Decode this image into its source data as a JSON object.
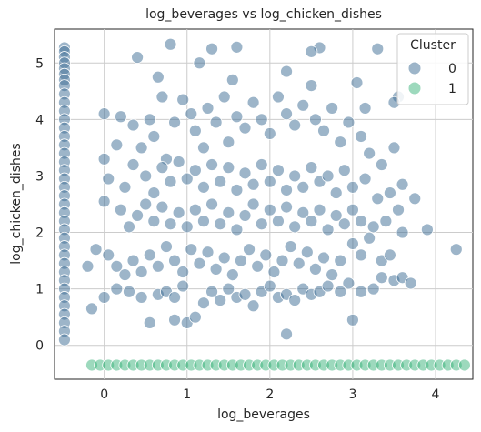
{
  "chart_data": {
    "type": "scatter",
    "title": "log_beverages vs log_chicken_dishes",
    "xlabel": "log_beverages",
    "ylabel": "log_chicken_dishes",
    "xlim": [
      -0.6,
      4.45
    ],
    "ylim": [
      -0.6,
      5.6
    ],
    "xticks": [
      0,
      1,
      2,
      3,
      4
    ],
    "yticks": [
      0,
      1,
      2,
      3,
      4,
      5
    ],
    "grid": true,
    "legend": {
      "title": "Cluster",
      "placement": "top-right"
    },
    "series": [
      {
        "name": "0",
        "color": "#3b6b93",
        "points": [
          [
            -0.48,
            5.27
          ],
          [
            -0.48,
            5.2
          ],
          [
            -0.48,
            5.1
          ],
          [
            -0.48,
            5.0
          ],
          [
            -0.48,
            4.9
          ],
          [
            -0.48,
            4.8
          ],
          [
            -0.48,
            4.7
          ],
          [
            -0.48,
            4.6
          ],
          [
            -0.48,
            4.45
          ],
          [
            -0.48,
            4.3
          ],
          [
            -0.48,
            4.15
          ],
          [
            -0.48,
            4.0
          ],
          [
            -0.48,
            3.85
          ],
          [
            -0.48,
            3.7
          ],
          [
            -0.48,
            3.55
          ],
          [
            -0.48,
            3.4
          ],
          [
            -0.48,
            3.25
          ],
          [
            -0.48,
            3.1
          ],
          [
            -0.48,
            2.95
          ],
          [
            -0.48,
            2.8
          ],
          [
            -0.48,
            2.65
          ],
          [
            -0.48,
            2.5
          ],
          [
            -0.48,
            2.35
          ],
          [
            -0.48,
            2.2
          ],
          [
            -0.48,
            2.05
          ],
          [
            -0.48,
            1.9
          ],
          [
            -0.48,
            1.75
          ],
          [
            -0.48,
            1.6
          ],
          [
            -0.48,
            1.45
          ],
          [
            -0.48,
            1.3
          ],
          [
            -0.48,
            1.15
          ],
          [
            -0.48,
            1.0
          ],
          [
            -0.48,
            0.85
          ],
          [
            -0.48,
            0.7
          ],
          [
            -0.48,
            0.55
          ],
          [
            -0.48,
            0.4
          ],
          [
            -0.48,
            0.25
          ],
          [
            -0.48,
            0.1
          ],
          [
            0.8,
            5.33
          ],
          [
            1.3,
            5.25
          ],
          [
            1.6,
            5.28
          ],
          [
            2.6,
            5.27
          ],
          [
            2.5,
            5.2
          ],
          [
            3.3,
            5.25
          ],
          [
            0.4,
            5.1
          ],
          [
            1.15,
            5.0
          ],
          [
            2.2,
            4.85
          ],
          [
            1.55,
            4.7
          ],
          [
            3.05,
            4.65
          ],
          [
            2.5,
            4.6
          ],
          [
            0.65,
            4.75
          ],
          [
            3.55,
            4.4
          ],
          [
            3.15,
            4.2
          ],
          [
            3.5,
            4.3
          ],
          [
            0.0,
            4.1
          ],
          [
            0.2,
            4.05
          ],
          [
            0.35,
            3.9
          ],
          [
            0.15,
            3.55
          ],
          [
            0.0,
            3.3
          ],
          [
            0.05,
            2.95
          ],
          [
            0.25,
            2.8
          ],
          [
            0.35,
            3.2
          ],
          [
            0.45,
            3.5
          ],
          [
            0.55,
            4.0
          ],
          [
            0.6,
            3.7
          ],
          [
            0.7,
            4.4
          ],
          [
            0.75,
            3.3
          ],
          [
            0.85,
            3.95
          ],
          [
            0.95,
            4.35
          ],
          [
            1.05,
            4.1
          ],
          [
            1.1,
            3.8
          ],
          [
            1.2,
            3.5
          ],
          [
            1.25,
            4.2
          ],
          [
            1.35,
            3.95
          ],
          [
            1.45,
            4.4
          ],
          [
            1.5,
            3.6
          ],
          [
            1.6,
            4.05
          ],
          [
            1.7,
            3.85
          ],
          [
            1.8,
            4.3
          ],
          [
            1.9,
            4.0
          ],
          [
            2.0,
            3.75
          ],
          [
            2.1,
            4.4
          ],
          [
            2.2,
            4.1
          ],
          [
            2.3,
            3.9
          ],
          [
            2.4,
            4.25
          ],
          [
            2.55,
            4.0
          ],
          [
            2.65,
            3.8
          ],
          [
            2.75,
            4.2
          ],
          [
            2.85,
            3.6
          ],
          [
            2.95,
            3.95
          ],
          [
            3.1,
            3.7
          ],
          [
            3.2,
            3.4
          ],
          [
            3.35,
            3.2
          ],
          [
            3.5,
            3.5
          ],
          [
            0.5,
            3.0
          ],
          [
            0.6,
            2.7
          ],
          [
            0.7,
            3.15
          ],
          [
            0.8,
            2.9
          ],
          [
            0.9,
            3.25
          ],
          [
            1.0,
            2.95
          ],
          [
            1.1,
            3.1
          ],
          [
            1.2,
            2.8
          ],
          [
            1.3,
            3.2
          ],
          [
            1.4,
            2.9
          ],
          [
            1.5,
            3.15
          ],
          [
            1.6,
            2.75
          ],
          [
            1.7,
            3.05
          ],
          [
            1.8,
            2.85
          ],
          [
            1.9,
            3.2
          ],
          [
            2.0,
            2.9
          ],
          [
            2.1,
            3.1
          ],
          [
            2.2,
            2.75
          ],
          [
            2.3,
            3.0
          ],
          [
            2.4,
            2.8
          ],
          [
            2.5,
            3.15
          ],
          [
            2.6,
            2.9
          ],
          [
            2.7,
            3.0
          ],
          [
            2.8,
            2.7
          ],
          [
            2.9,
            3.1
          ],
          [
            3.0,
            2.8
          ],
          [
            3.15,
            2.95
          ],
          [
            3.3,
            2.6
          ],
          [
            3.45,
            2.7
          ],
          [
            3.6,
            2.85
          ],
          [
            3.75,
            2.6
          ],
          [
            3.55,
            2.4
          ],
          [
            0.0,
            2.55
          ],
          [
            0.2,
            2.4
          ],
          [
            0.3,
            2.1
          ],
          [
            0.4,
            2.3
          ],
          [
            0.5,
            2.5
          ],
          [
            0.6,
            2.2
          ],
          [
            0.7,
            2.45
          ],
          [
            0.8,
            2.15
          ],
          [
            0.9,
            2.35
          ],
          [
            1.0,
            2.1
          ],
          [
            1.1,
            2.4
          ],
          [
            1.2,
            2.2
          ],
          [
            1.3,
            2.5
          ],
          [
            1.4,
            2.15
          ],
          [
            1.5,
            2.35
          ],
          [
            1.6,
            2.05
          ],
          [
            1.7,
            2.3
          ],
          [
            1.8,
            2.5
          ],
          [
            1.9,
            2.15
          ],
          [
            2.0,
            2.4
          ],
          [
            2.1,
            2.2
          ],
          [
            2.2,
            2.45
          ],
          [
            2.3,
            2.1
          ],
          [
            2.4,
            2.35
          ],
          [
            2.5,
            2.2
          ],
          [
            2.6,
            2.4
          ],
          [
            2.7,
            2.05
          ],
          [
            2.8,
            2.3
          ],
          [
            2.9,
            2.15
          ],
          [
            3.0,
            2.4
          ],
          [
            3.1,
            2.2
          ],
          [
            3.25,
            2.1
          ],
          [
            3.4,
            2.2
          ],
          [
            3.6,
            2.0
          ],
          [
            3.9,
            2.05
          ],
          [
            3.0,
            1.8
          ],
          [
            3.1,
            1.6
          ],
          [
            3.2,
            1.9
          ],
          [
            3.35,
            1.5
          ],
          [
            3.45,
            1.6
          ],
          [
            -0.1,
            1.7
          ],
          [
            0.05,
            1.6
          ],
          [
            0.15,
            1.4
          ],
          [
            0.25,
            1.25
          ],
          [
            0.35,
            1.5
          ],
          [
            0.45,
            1.3
          ],
          [
            0.55,
            1.6
          ],
          [
            0.65,
            1.4
          ],
          [
            0.75,
            1.75
          ],
          [
            0.85,
            1.5
          ],
          [
            0.95,
            1.3
          ],
          [
            1.05,
            1.7
          ],
          [
            1.15,
            1.45
          ],
          [
            1.25,
            1.65
          ],
          [
            1.35,
            1.35
          ],
          [
            1.45,
            1.55
          ],
          [
            1.55,
            1.25
          ],
          [
            1.65,
            1.5
          ],
          [
            1.75,
            1.7
          ],
          [
            1.85,
            1.4
          ],
          [
            1.95,
            1.6
          ],
          [
            2.05,
            1.3
          ],
          [
            2.15,
            1.5
          ],
          [
            2.25,
            1.75
          ],
          [
            2.35,
            1.45
          ],
          [
            2.45,
            1.65
          ],
          [
            2.55,
            1.35
          ],
          [
            2.65,
            1.55
          ],
          [
            2.75,
            1.25
          ],
          [
            2.85,
            1.5
          ],
          [
            2.95,
            1.1
          ],
          [
            0.0,
            0.85
          ],
          [
            0.15,
            1.0
          ],
          [
            0.3,
            0.95
          ],
          [
            0.45,
            0.85
          ],
          [
            0.55,
            0.4
          ],
          [
            0.65,
            0.9
          ],
          [
            0.75,
            0.95
          ],
          [
            0.85,
            0.85
          ],
          [
            0.95,
            1.05
          ],
          [
            1.0,
            0.4
          ],
          [
            1.1,
            0.5
          ],
          [
            1.2,
            0.75
          ],
          [
            1.3,
            0.95
          ],
          [
            1.4,
            0.8
          ],
          [
            1.5,
            1.0
          ],
          [
            1.6,
            0.85
          ],
          [
            1.7,
            0.9
          ],
          [
            1.8,
            0.7
          ],
          [
            1.9,
            0.95
          ],
          [
            2.0,
            1.05
          ],
          [
            2.1,
            0.85
          ],
          [
            2.2,
            0.9
          ],
          [
            2.3,
            0.8
          ],
          [
            2.4,
            1.0
          ],
          [
            2.5,
            0.9
          ],
          [
            2.6,
            0.95
          ],
          [
            2.7,
            1.05
          ],
          [
            2.85,
            0.95
          ],
          [
            3.0,
            0.45
          ],
          [
            3.1,
            0.95
          ],
          [
            3.25,
            1.0
          ],
          [
            3.35,
            1.2
          ],
          [
            3.5,
            1.15
          ],
          [
            3.6,
            1.2
          ],
          [
            3.7,
            1.1
          ],
          [
            2.2,
            0.2
          ],
          [
            4.25,
            1.7
          ],
          [
            -0.15,
            0.65
          ],
          [
            -0.2,
            1.4
          ],
          [
            0.85,
            0.45
          ]
        ]
      },
      {
        "name": "1",
        "color": "#3cb37b",
        "points": [
          [
            -0.15,
            -0.35
          ],
          [
            -0.05,
            -0.35
          ],
          [
            0.05,
            -0.35
          ],
          [
            0.15,
            -0.35
          ],
          [
            0.25,
            -0.35
          ],
          [
            0.35,
            -0.35
          ],
          [
            0.45,
            -0.35
          ],
          [
            0.55,
            -0.35
          ],
          [
            0.65,
            -0.35
          ],
          [
            0.75,
            -0.35
          ],
          [
            0.85,
            -0.35
          ],
          [
            0.95,
            -0.35
          ],
          [
            1.05,
            -0.35
          ],
          [
            1.15,
            -0.35
          ],
          [
            1.25,
            -0.35
          ],
          [
            1.35,
            -0.35
          ],
          [
            1.45,
            -0.35
          ],
          [
            1.55,
            -0.35
          ],
          [
            1.65,
            -0.35
          ],
          [
            1.75,
            -0.35
          ],
          [
            1.85,
            -0.35
          ],
          [
            1.95,
            -0.35
          ],
          [
            2.05,
            -0.35
          ],
          [
            2.15,
            -0.35
          ],
          [
            2.25,
            -0.35
          ],
          [
            2.35,
            -0.35
          ],
          [
            2.45,
            -0.35
          ],
          [
            2.55,
            -0.35
          ],
          [
            2.65,
            -0.35
          ],
          [
            2.75,
            -0.35
          ],
          [
            2.85,
            -0.35
          ],
          [
            2.95,
            -0.35
          ],
          [
            3.05,
            -0.35
          ],
          [
            3.15,
            -0.35
          ],
          [
            3.25,
            -0.35
          ],
          [
            3.35,
            -0.35
          ],
          [
            3.45,
            -0.35
          ],
          [
            3.55,
            -0.35
          ],
          [
            3.65,
            -0.35
          ],
          [
            3.75,
            -0.35
          ],
          [
            3.85,
            -0.35
          ],
          [
            3.95,
            -0.35
          ],
          [
            4.05,
            -0.35
          ],
          [
            4.15,
            -0.35
          ],
          [
            4.25,
            -0.35
          ],
          [
            4.35,
            -0.35
          ]
        ]
      }
    ]
  }
}
